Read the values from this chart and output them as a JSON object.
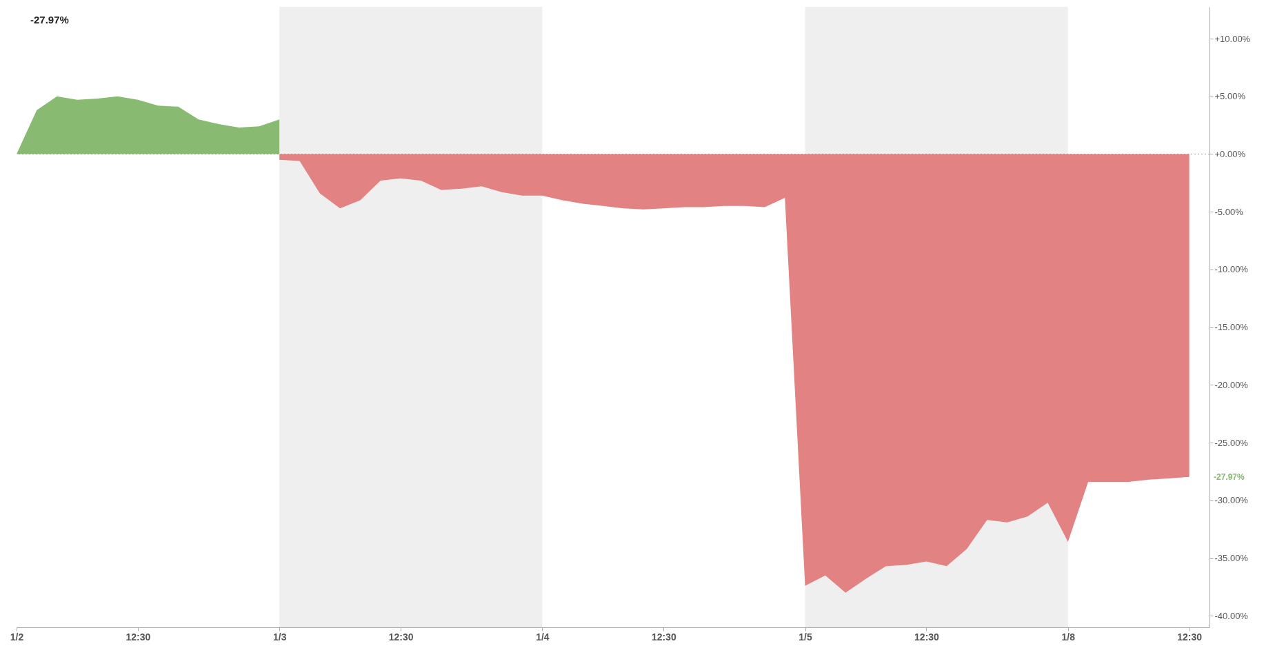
{
  "chart_data": {
    "type": "area",
    "categories": [
      "1/2",
      null,
      null,
      null,
      null,
      null,
      "12:30",
      null,
      null,
      null,
      null,
      null,
      null,
      "1/3",
      null,
      null,
      null,
      null,
      null,
      "12:30",
      null,
      null,
      null,
      null,
      null,
      null,
      "1/4",
      null,
      null,
      null,
      null,
      null,
      "12:30",
      null,
      null,
      null,
      null,
      null,
      null,
      "1/5",
      null,
      null,
      null,
      null,
      null,
      "12:30",
      null,
      null,
      null,
      null,
      null,
      null,
      "1/8",
      null,
      null,
      null,
      null,
      null,
      "12:30"
    ],
    "series": [
      {
        "color": "#88ba72",
        "values": [
          0,
          3.8,
          5.0,
          4.7,
          4.8,
          5.0,
          4.7,
          4.2,
          4.1,
          3.0,
          2.6,
          2.3,
          2.4,
          3.0,
          null,
          null,
          null,
          null,
          null,
          null,
          null,
          null,
          null,
          null,
          null,
          null,
          null,
          null,
          null,
          null,
          null,
          null,
          null,
          null,
          null,
          null,
          null,
          null,
          null,
          null,
          null,
          null,
          null,
          null,
          null,
          null,
          null,
          null,
          null,
          null,
          null,
          null,
          null,
          null,
          null,
          null,
          null,
          null,
          null
        ]
      },
      {
        "color": "#e28282",
        "values": [
          null,
          null,
          null,
          null,
          null,
          null,
          null,
          null,
          null,
          null,
          null,
          null,
          null,
          -0.5,
          -0.6,
          -3.4,
          -4.7,
          -4.0,
          -2.3,
          -2.1,
          -2.3,
          -3.1,
          -3.0,
          -2.8,
          -3.3,
          -3.6,
          -3.6,
          -4.0,
          -4.3,
          -4.5,
          -4.7,
          -4.8,
          -4.7,
          -4.6,
          -4.6,
          -4.5,
          -4.5,
          -4.6,
          -3.8,
          -37.4,
          -36.5,
          -38.0,
          -36.8,
          -35.7,
          -35.6,
          -35.3,
          -35.7,
          -34.2,
          -31.7,
          -31.9,
          -31.4,
          -30.2,
          -33.6,
          -28.4,
          -28.4,
          -28.4,
          -28.2,
          -28.1,
          -27.97
        ]
      }
    ],
    "ylim": [
      -41,
      12.75
    ],
    "yticks": [
      {
        "value": 10,
        "label": "+10.00%"
      },
      {
        "value": 5,
        "label": "+5.00%"
      },
      {
        "value": 0,
        "label": "+0.00%"
      },
      {
        "value": -5,
        "label": "-5.00%"
      },
      {
        "value": -10,
        "label": "-10.00%"
      },
      {
        "value": -15,
        "label": "-15.00%"
      },
      {
        "value": -20,
        "label": "-20.00%"
      },
      {
        "value": -25,
        "label": "-25.00%"
      },
      {
        "value": -30,
        "label": "-30.00%"
      },
      {
        "value": -35,
        "label": "-35.00%"
      },
      {
        "value": -40,
        "label": "-40.00%"
      }
    ],
    "bands": [
      {
        "axis": "x",
        "from": "1/3",
        "to": "1/4",
        "color": "#efefef"
      },
      {
        "axis": "x",
        "from": "1/5",
        "to": "1/8",
        "color": "#efefef"
      }
    ],
    "ref_lines": [
      {
        "axis": "y",
        "value": 0,
        "color": "#999999",
        "line_style": "dotted"
      }
    ],
    "annotations": [
      "-27.97%",
      "-27.97%"
    ],
    "grid": false
  }
}
